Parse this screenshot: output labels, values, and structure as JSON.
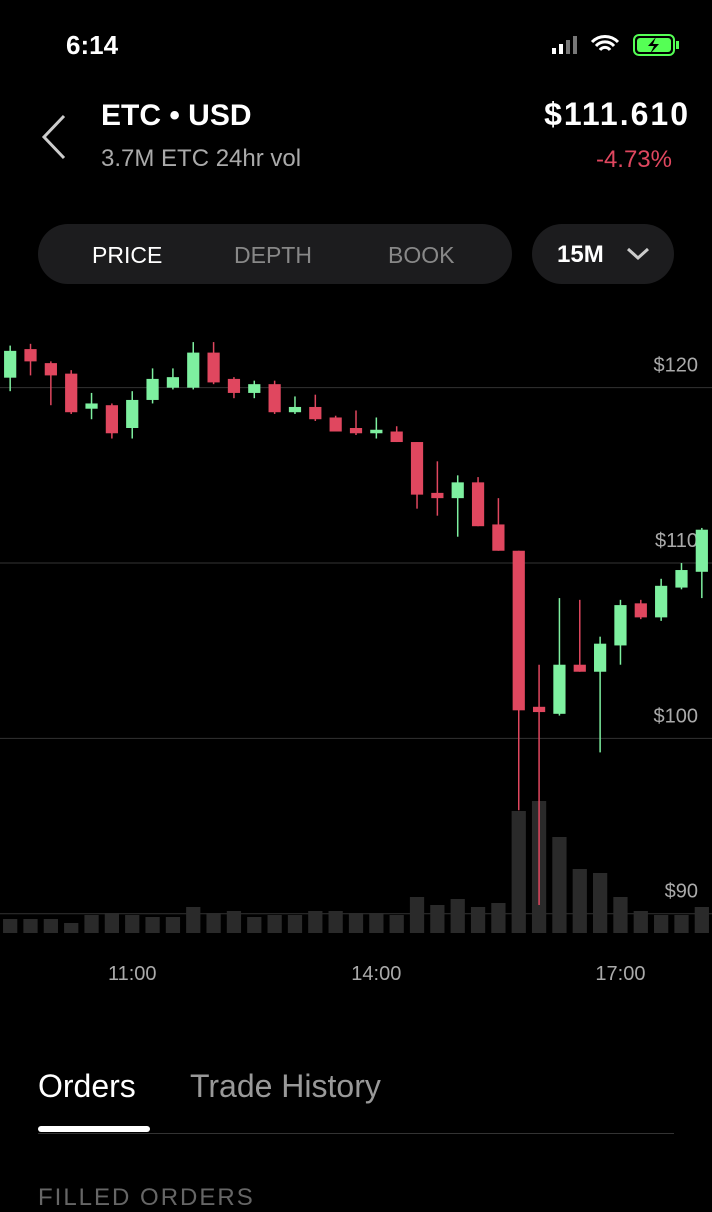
{
  "status_bar": {
    "time": "6:14"
  },
  "header": {
    "pair": "ETC • USD",
    "volume": "3.7M ETC 24hr vol",
    "price": "$111.610",
    "change": "-4.73%"
  },
  "tabs": [
    "PRICE",
    "DEPTH",
    "BOOK"
  ],
  "interval": "15M",
  "chart_data": {
    "type": "candlestick",
    "categories": [
      null,
      null,
      null,
      null,
      null,
      null,
      "11:00",
      null,
      null,
      null,
      null,
      null,
      null,
      null,
      null,
      null,
      null,
      null,
      "14:00",
      null,
      null,
      null,
      null,
      null,
      null,
      null,
      null,
      null,
      null,
      null,
      "17:00",
      null,
      null,
      null,
      null
    ],
    "open": [
      120.57,
      122.2,
      121.4,
      120.8,
      118.8,
      119.0,
      117.7,
      119.3,
      120.0,
      120.0,
      122.0,
      120.5,
      119.7,
      120.2,
      118.6,
      118.9,
      118.3,
      117.7,
      117.4,
      117.5,
      116.9,
      114.0,
      113.7,
      114.6,
      112.2,
      110.7,
      101.8,
      101.4,
      104.2,
      103.8,
      105.3,
      107.7,
      106.9,
      108.6,
      109.5
    ],
    "high": [
      122.4,
      122.5,
      121.5,
      121.0,
      119.7,
      119.1,
      119.8,
      121.1,
      121.1,
      122.6,
      122.6,
      120.6,
      120.4,
      120.4,
      119.5,
      119.6,
      118.4,
      118.7,
      118.3,
      117.8,
      116.9,
      115.8,
      115.0,
      114.9,
      113.7,
      110.7,
      104.2,
      108.0,
      107.9,
      105.8,
      107.9,
      107.9,
      109.1,
      110.0,
      112.0
    ],
    "low": [
      119.8,
      120.7,
      119.0,
      118.5,
      118.2,
      117.1,
      117.1,
      119.1,
      119.9,
      119.9,
      120.2,
      119.4,
      119.4,
      118.5,
      118.5,
      118.1,
      117.5,
      117.3,
      117.1,
      116.9,
      113.1,
      112.7,
      111.5,
      112.1,
      110.7,
      95.9,
      90.5,
      101.3,
      103.8,
      99.2,
      104.2,
      106.8,
      106.7,
      108.5,
      108.0
    ],
    "close": [
      122.1,
      121.5,
      120.7,
      118.6,
      119.1,
      117.4,
      119.3,
      120.5,
      120.6,
      122.0,
      120.3,
      119.7,
      120.2,
      118.6,
      118.9,
      118.2,
      117.5,
      117.4,
      117.6,
      116.9,
      113.9,
      113.7,
      114.6,
      112.1,
      110.7,
      101.6,
      101.5,
      104.2,
      103.8,
      105.4,
      107.6,
      106.9,
      108.7,
      109.6,
      111.9
    ],
    "volume": [
      14,
      14,
      14,
      10,
      18,
      20,
      18,
      16,
      16,
      26,
      20,
      22,
      16,
      18,
      18,
      22,
      22,
      20,
      20,
      18,
      36,
      28,
      34,
      26,
      30,
      122,
      132,
      96,
      64,
      60,
      36,
      22,
      18,
      18,
      26
    ],
    "ylim": [
      88.9,
      125
    ],
    "yticks": [
      {
        "value": 90,
        "label": "$90"
      },
      {
        "value": 100,
        "label": "$100"
      },
      {
        "value": 110,
        "label": "$110"
      },
      {
        "value": 120,
        "label": "$120"
      }
    ],
    "grid": true,
    "up_color": "#7ef0a0",
    "down_color": "#e0475f",
    "volume_color": "#2a2a2a"
  },
  "bottom_tabs": [
    "Orders",
    "Trade History"
  ],
  "section_title": "FILLED ORDERS"
}
